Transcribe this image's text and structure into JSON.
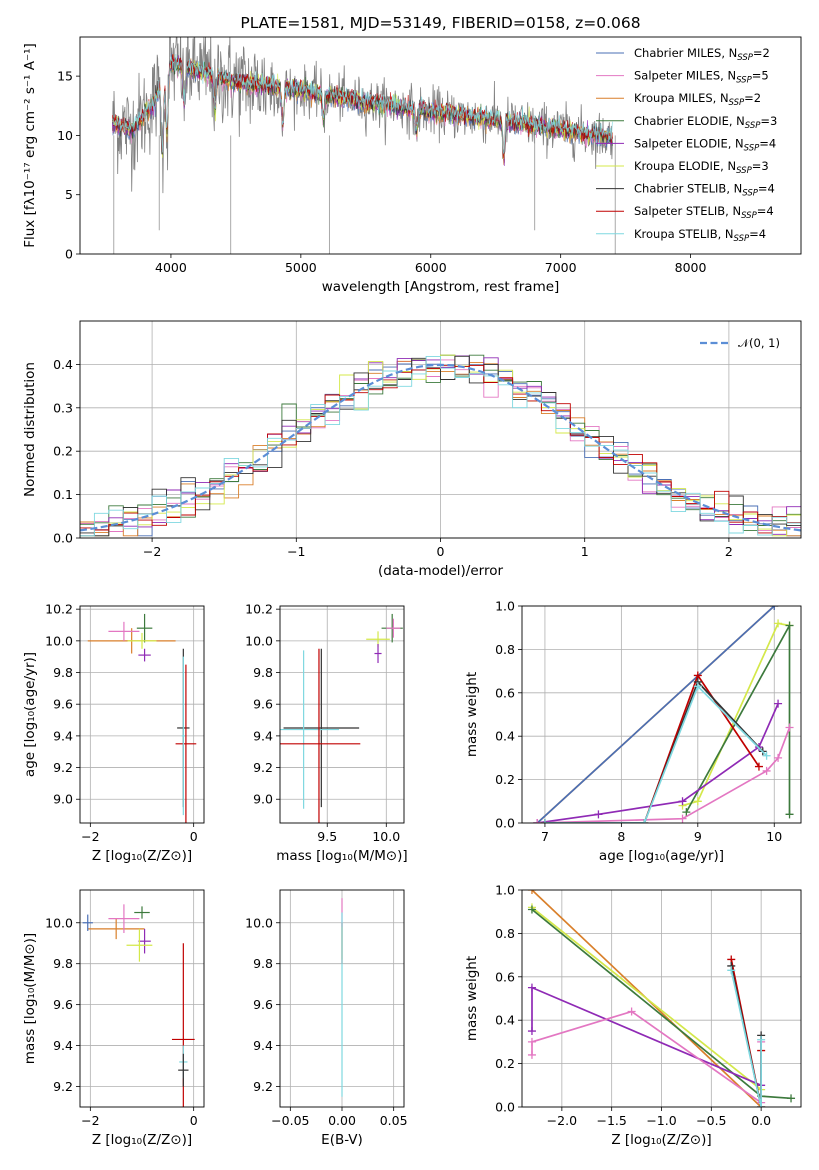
{
  "chart_data": [
    {
      "id": "spectrum",
      "type": "line",
      "title": "PLATE=1581, MJD=53149, FIBERID=0158, z=0.068",
      "xlabel": "wavelength [Angstrom, rest frame]",
      "ylabel": "Flux [fλ10⁻¹⁷ erg cm⁻² s⁻¹ A⁻¹]",
      "xlim": [
        3300,
        8850
      ],
      "ylim": [
        0,
        18.3
      ],
      "xticks": [
        4000,
        5000,
        6000,
        7000,
        8000
      ],
      "yticks": [
        0,
        5,
        10,
        15
      ],
      "legend_placement": "top-right",
      "data_color": "#808080",
      "models": [
        {
          "name": "Chabrier MILES, N",
          "sub": "SSP",
          "suffix": "=2",
          "color": "#4a6fb5"
        },
        {
          "name": "Salpeter MILES, N",
          "sub": "SSP",
          "suffix": "=5",
          "color": "#e377c2"
        },
        {
          "name": "Kroupa MILES, N",
          "sub": "SSP",
          "suffix": "=2",
          "color": "#d97f2a"
        },
        {
          "name": "Chabrier ELODIE, N",
          "sub": "SSP",
          "suffix": "=3",
          "color": "#3d7a3d"
        },
        {
          "name": "Salpeter ELODIE, N",
          "sub": "SSP",
          "suffix": "=4",
          "color": "#8f2ab5"
        },
        {
          "name": "Kroupa ELODIE, N",
          "sub": "SSP",
          "suffix": "=3",
          "color": "#d4e84a"
        },
        {
          "name": "Chabrier STELIB, N",
          "sub": "SSP",
          "suffix": "=4",
          "color": "#333333"
        },
        {
          "name": "Salpeter STELIB, N",
          "sub": "SSP",
          "suffix": "=4",
          "color": "#c00000"
        },
        {
          "name": "Kroupa STELIB, N",
          "sub": "SSP",
          "suffix": "=4",
          "color": "#7fd8e0"
        }
      ],
      "continuum": {
        "x": [
          3550,
          3700,
          3850,
          4000,
          4200,
          4500,
          5000,
          5500,
          6000,
          6500,
          7000,
          7400
        ],
        "y": [
          11.0,
          10.5,
          12.5,
          16.0,
          15.5,
          14.5,
          13.8,
          12.8,
          12.0,
          11.3,
          10.5,
          9.8
        ]
      }
    },
    {
      "id": "residuals",
      "type": "line",
      "xlabel": "(data-model)/error",
      "ylabel": "Normed distribution",
      "xlim": [
        -2.5,
        2.5
      ],
      "ylim": [
        0,
        0.5
      ],
      "xticks": [
        -2,
        -1,
        0,
        1,
        2
      ],
      "yticks": [
        0.0,
        0.1,
        0.2,
        0.3,
        0.4
      ],
      "grid": true,
      "legend_placement": "top-right",
      "reference": {
        "label": "𝒩(0, 1)",
        "color": "#5b8ed6",
        "style": "dashed"
      }
    },
    {
      "id": "age-vs-z",
      "type": "scatter",
      "xlabel": "Z [log₁₀(Z/Z⊙)]",
      "ylabel": "age  [log₁₀(age/yr)]",
      "xlim": [
        -2.2,
        0.2
      ],
      "ylim": [
        8.85,
        10.22
      ],
      "xticks": [
        -2,
        0
      ],
      "yticks": [
        9.0,
        9.2,
        9.4,
        9.6,
        9.8,
        10.0,
        10.2
      ],
      "grid": true,
      "points": [
        {
          "model": "Kroupa MILES",
          "x": -1.2,
          "xerr": 0.85,
          "y": 10.0,
          "yerr": 0.08
        },
        {
          "model": "Salpeter MILES",
          "x": -1.35,
          "xerr": 0.3,
          "y": 10.06,
          "yerr": 0.06
        },
        {
          "model": "Chabrier ELODIE",
          "x": -0.95,
          "xerr": 0.15,
          "y": 10.08,
          "yerr": 0.09
        },
        {
          "model": "Kroupa ELODIE",
          "x": -1.0,
          "xerr": 0.28,
          "y": 10.0,
          "yerr": 0.05
        },
        {
          "model": "Salpeter ELODIE",
          "x": -0.95,
          "xerr": 0.12,
          "y": 9.91,
          "yerr": 0.04
        },
        {
          "model": "Chabrier STELIB",
          "x": -0.2,
          "xerr": 0.12,
          "y": 9.45,
          "yerr": 0.5
        },
        {
          "model": "Salpeter STELIB",
          "x": -0.15,
          "xerr": 0.2,
          "y": 9.35,
          "yerr": 0.5
        },
        {
          "model": "Kroupa STELIB",
          "x": -0.2,
          "xerr": 0.03,
          "y": 9.4,
          "yerr": 0.5
        }
      ]
    },
    {
      "id": "age-vs-mass",
      "type": "scatter",
      "xlabel": "mass [log₁₀(M/M⊙)]",
      "xlim": [
        9.1,
        10.15
      ],
      "ylim": [
        8.85,
        10.22
      ],
      "xticks": [
        9.5,
        10.0
      ],
      "yticks": [
        9.0,
        9.2,
        9.4,
        9.6,
        9.8,
        10.0,
        10.2
      ],
      "grid": true,
      "points": [
        {
          "model": "Chabrier ELODIE",
          "x": 10.05,
          "xerr": 0.09,
          "y": 10.08,
          "yerr": 0.09
        },
        {
          "model": "Salpeter MILES",
          "x": 10.06,
          "xerr": 0.06,
          "y": 10.08,
          "yerr": 0.06
        },
        {
          "model": "Kroupa ELODIE",
          "x": 9.93,
          "xerr": 0.1,
          "y": 10.01,
          "yerr": 0.05
        },
        {
          "model": "Salpeter ELODIE",
          "x": 9.93,
          "xerr": 0.03,
          "y": 9.92,
          "yerr": 0.06
        },
        {
          "model": "Chabrier STELIB",
          "x": 9.45,
          "xerr": 0.32,
          "y": 9.45,
          "yerr": 0.5
        },
        {
          "model": "Kroupa STELIB",
          "x": 9.3,
          "xerr": 0.3,
          "y": 9.44,
          "yerr": 0.5
        },
        {
          "model": "Salpeter STELIB",
          "x": 9.43,
          "xerr": 0.35,
          "y": 9.35,
          "yerr": 0.6
        }
      ]
    },
    {
      "id": "weight-vs-age",
      "type": "line",
      "xlabel": "age  [log₁₀(age/yr)]",
      "ylabel": "mass weight",
      "xlim": [
        6.7,
        10.35
      ],
      "ylim": [
        0,
        1.0
      ],
      "xticks": [
        7,
        8,
        9,
        10
      ],
      "yticks": [
        0.0,
        0.2,
        0.4,
        0.6,
        0.8,
        1.0
      ],
      "grid": true,
      "series": [
        {
          "model": "Kroupa MILES",
          "x": [
            6.9,
            10.0
          ],
          "y": [
            0.0,
            1.0
          ]
        },
        {
          "model": "Chabrier MILES",
          "x": [
            6.9,
            10.0
          ],
          "y": [
            0.0,
            1.0
          ]
        },
        {
          "model": "Kroupa ELODIE",
          "x": [
            8.8,
            9.0,
            10.05,
            10.2
          ],
          "y": [
            0.08,
            0.1,
            0.92,
            0.91
          ]
        },
        {
          "model": "Chabrier ELODIE",
          "x": [
            8.85,
            10.2,
            10.2
          ],
          "y": [
            0.05,
            0.91,
            0.04
          ]
        },
        {
          "model": "Salpeter ELODIE",
          "x": [
            6.9,
            7.7,
            8.8,
            9.8,
            10.05
          ],
          "y": [
            0.0,
            0.04,
            0.1,
            0.35,
            0.55
          ]
        },
        {
          "model": "Salpeter MILES",
          "x": [
            6.9,
            8.8,
            9.9,
            10.05,
            10.2
          ],
          "y": [
            0.0,
            0.02,
            0.24,
            0.3,
            0.44
          ]
        },
        {
          "model": "Salpeter STELIB",
          "x": [
            7.0,
            8.3,
            9.0,
            9.8
          ],
          "y": [
            0.0,
            0.0,
            0.68,
            0.26
          ]
        },
        {
          "model": "Chabrier STELIB",
          "x": [
            7.0,
            8.3,
            9.0,
            9.85
          ],
          "y": [
            0.0,
            0.0,
            0.65,
            0.33
          ]
        },
        {
          "model": "Kroupa STELIB",
          "x": [
            7.0,
            8.3,
            9.0,
            9.9
          ],
          "y": [
            0.0,
            0.0,
            0.63,
            0.31
          ]
        }
      ]
    },
    {
      "id": "mass-vs-z",
      "type": "scatter",
      "xlabel": "Z [log₁₀(Z/Z⊙)]",
      "ylabel": "mass [log₁₀(M/M⊙)]",
      "xlim": [
        -2.2,
        0.2
      ],
      "ylim": [
        9.1,
        10.16
      ],
      "xticks": [
        -2,
        0
      ],
      "yticks": [
        9.2,
        9.4,
        9.6,
        9.8,
        10.0
      ],
      "grid": true,
      "points": [
        {
          "model": "Kroupa MILES",
          "x": -1.5,
          "xerr": 0.55,
          "y": 9.97,
          "yerr": 0.05
        },
        {
          "model": "Chabrier MILES",
          "x": -2.05,
          "xerr": 0.1,
          "y": 10.0,
          "yerr": 0.04
        },
        {
          "model": "Salpeter MILES",
          "x": -1.35,
          "xerr": 0.3,
          "y": 10.02,
          "yerr": 0.07
        },
        {
          "model": "Chabrier ELODIE",
          "x": -1.0,
          "xerr": 0.15,
          "y": 10.05,
          "yerr": 0.03
        },
        {
          "model": "Salpeter ELODIE",
          "x": -0.95,
          "xerr": 0.12,
          "y": 9.91,
          "yerr": 0.06
        },
        {
          "model": "Kroupa ELODIE",
          "x": -1.05,
          "xerr": 0.25,
          "y": 9.89,
          "yerr": 0.08
        },
        {
          "model": "Salpeter STELIB",
          "x": -0.2,
          "xerr": 0.22,
          "y": 9.43,
          "yerr": 0.47
        },
        {
          "model": "Kroupa STELIB",
          "x": -0.2,
          "xerr": 0.08,
          "y": 9.32,
          "yerr": 0.08
        },
        {
          "model": "Chabrier STELIB",
          "x": -0.2,
          "xerr": 0.1,
          "y": 9.28,
          "yerr": 0.08
        }
      ]
    },
    {
      "id": "mass-vs-ebv",
      "type": "scatter",
      "xlabel": "E(B-V)",
      "xlim": [
        -0.06,
        0.06
      ],
      "ylim": [
        9.1,
        10.16
      ],
      "xticks": [
        -0.05,
        0.0,
        0.05
      ],
      "yticks": [
        9.2,
        9.4,
        9.6,
        9.8,
        10.0
      ],
      "grid": true,
      "points": [
        {
          "model": "Salpeter MILES",
          "x": 0.0,
          "xerr": 0.0,
          "y": 10.05,
          "yerr": 0.07
        },
        {
          "model": "Kroupa ELODIE",
          "x": 0.0,
          "xerr": 0.0,
          "y": 9.9,
          "yerr": 0.08
        },
        {
          "model": "Salpeter STELIB",
          "x": 0.0,
          "xerr": 0.0,
          "y": 9.9,
          "yerr": 0.1
        },
        {
          "model": "Kroupa STELIB",
          "x": 0.0,
          "xerr": 0.0,
          "y": 9.6,
          "yerr": 0.45
        }
      ]
    },
    {
      "id": "weight-vs-z",
      "type": "line",
      "xlabel": "Z [log₁₀(Z/Z⊙)]",
      "ylabel": "mass weight",
      "xlim": [
        -2.4,
        0.4
      ],
      "ylim": [
        0,
        1.0
      ],
      "xticks": [
        -2.0,
        -1.5,
        -1.0,
        -0.5,
        0.0
      ],
      "yticks": [
        0.0,
        0.2,
        0.4,
        0.6,
        0.8,
        1.0
      ],
      "grid": true,
      "series": [
        {
          "model": "Kroupa MILES",
          "x": [
            -2.3,
            0.0
          ],
          "y": [
            1.0,
            0.0
          ]
        },
        {
          "model": "Kroupa ELODIE",
          "x": [
            -2.3,
            0.0
          ],
          "y": [
            0.92,
            0.08
          ]
        },
        {
          "model": "Chabrier ELODIE",
          "x": [
            -2.3,
            0.0,
            0.3
          ],
          "y": [
            0.91,
            0.05,
            0.04
          ]
        },
        {
          "model": "Salpeter ELODIE",
          "x": [
            -2.3,
            -2.3,
            0.0
          ],
          "y": [
            0.35,
            0.55,
            0.1
          ]
        },
        {
          "model": "Salpeter MILES",
          "x": [
            -2.3,
            -2.3,
            -1.3,
            0.0,
            0.0
          ],
          "y": [
            0.24,
            0.3,
            0.44,
            0.02,
            0.3
          ]
        },
        {
          "model": "Salpeter STELIB",
          "x": [
            -0.3,
            0.0,
            0.0
          ],
          "y": [
            0.68,
            0.0,
            0.26
          ]
        },
        {
          "model": "Chabrier STELIB",
          "x": [
            -0.3,
            0.0,
            0.0
          ],
          "y": [
            0.65,
            0.0,
            0.33
          ]
        },
        {
          "model": "Kroupa STELIB",
          "x": [
            -0.3,
            0.0,
            0.0
          ],
          "y": [
            0.63,
            0.0,
            0.31
          ]
        }
      ]
    }
  ]
}
